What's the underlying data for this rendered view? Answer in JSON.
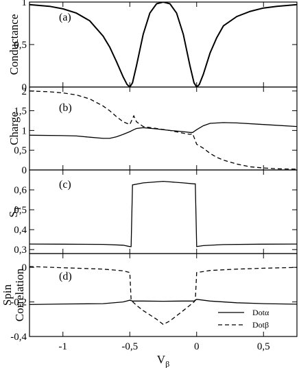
{
  "chart_data": [
    {
      "type": "line",
      "panel": "(a)",
      "ylabel": "Conductance",
      "xlim": [
        -1.25,
        0.75
      ],
      "ylim": [
        0,
        1
      ],
      "yticks": [
        "0",
        "0,5",
        "1"
      ],
      "grid": false,
      "series": [
        {
          "style": "solid",
          "x": [
            -1.25,
            -1.1,
            -1.0,
            -0.9,
            -0.8,
            -0.7,
            -0.65,
            -0.6,
            -0.55,
            -0.52,
            -0.5,
            -0.48,
            -0.45,
            -0.4,
            -0.35,
            -0.3,
            -0.25,
            -0.2,
            -0.15,
            -0.1,
            -0.05,
            -0.02,
            0.0,
            0.02,
            0.05,
            0.1,
            0.15,
            0.2,
            0.3,
            0.4,
            0.5,
            0.6,
            0.75
          ],
          "y": [
            0.97,
            0.95,
            0.92,
            0.87,
            0.78,
            0.6,
            0.47,
            0.3,
            0.12,
            0.03,
            0.0,
            0.05,
            0.25,
            0.62,
            0.87,
            0.98,
            1.0,
            0.98,
            0.87,
            0.62,
            0.25,
            0.05,
            0.0,
            0.03,
            0.15,
            0.4,
            0.58,
            0.72,
            0.83,
            0.89,
            0.93,
            0.95,
            0.97
          ]
        }
      ]
    },
    {
      "type": "line",
      "panel": "(b)",
      "ylabel": "Charge",
      "xlim": [
        -1.25,
        0.75
      ],
      "ylim": [
        0,
        2.1
      ],
      "yticks": [
        "0",
        "0,5",
        "1",
        "1,5",
        "2"
      ],
      "grid": false,
      "series": [
        {
          "name": "Dotα",
          "style": "solid",
          "x": [
            -1.25,
            -1.0,
            -0.9,
            -0.8,
            -0.7,
            -0.65,
            -0.6,
            -0.55,
            -0.5,
            -0.47,
            -0.45,
            -0.4,
            -0.3,
            -0.2,
            -0.1,
            -0.05,
            -0.03,
            0.0,
            0.05,
            0.1,
            0.2,
            0.3,
            0.5,
            0.75
          ],
          "y": [
            0.88,
            0.87,
            0.86,
            0.83,
            0.8,
            0.8,
            0.84,
            0.9,
            0.97,
            1.02,
            1.05,
            1.07,
            1.04,
            1.0,
            0.97,
            0.95,
            0.95,
            1.02,
            1.12,
            1.18,
            1.2,
            1.19,
            1.15,
            1.1
          ]
        },
        {
          "name": "Dotβ",
          "style": "dashed",
          "x": [
            -1.25,
            -1.1,
            -1.0,
            -0.9,
            -0.8,
            -0.7,
            -0.65,
            -0.6,
            -0.55,
            -0.5,
            -0.47,
            -0.45,
            -0.4,
            -0.3,
            -0.2,
            -0.1,
            -0.05,
            -0.03,
            0.0,
            0.05,
            0.1,
            0.15,
            0.2,
            0.3,
            0.4,
            0.5,
            0.6,
            0.75
          ],
          "y": [
            2.0,
            1.98,
            1.95,
            1.9,
            1.8,
            1.62,
            1.5,
            1.35,
            1.22,
            1.15,
            1.37,
            1.22,
            1.1,
            1.05,
            1.0,
            0.93,
            0.9,
            0.92,
            0.65,
            0.55,
            0.42,
            0.32,
            0.25,
            0.15,
            0.08,
            0.05,
            0.03,
            0.02
          ]
        }
      ]
    },
    {
      "type": "line",
      "panel": "(c)",
      "ylabel": "S",
      "ylabel_sub": "T",
      "xlim": [
        -1.25,
        0.75
      ],
      "ylim": [
        0.28,
        0.7
      ],
      "yticks": [
        "0,3",
        "0,4",
        "0,5",
        "0,6"
      ],
      "grid": false,
      "series": [
        {
          "style": "solid",
          "x": [
            -1.25,
            -1.0,
            -0.7,
            -0.55,
            -0.5,
            -0.49,
            -0.48,
            -0.4,
            -0.3,
            -0.25,
            -0.2,
            -0.1,
            -0.02,
            -0.01,
            0.0,
            0.05,
            0.2,
            0.5,
            0.75
          ],
          "y": [
            0.328,
            0.327,
            0.326,
            0.322,
            0.315,
            0.315,
            0.625,
            0.635,
            0.64,
            0.643,
            0.64,
            0.635,
            0.63,
            0.63,
            0.315,
            0.32,
            0.325,
            0.327,
            0.328
          ]
        }
      ]
    },
    {
      "type": "line",
      "panel": "(d)",
      "ylabel": "Spin Correlation",
      "xlim": [
        -1.25,
        0.75
      ],
      "ylim": [
        -0.4,
        0.08
      ],
      "yticks": [
        "-0,4",
        "-0,2",
        "0"
      ],
      "xticks": [
        "-1",
        "-0,5",
        "0",
        "0,5"
      ],
      "xlabel": "V",
      "xlabel_sub": "β",
      "grid": false,
      "legend": "bottom-right",
      "series": [
        {
          "name": "Dotα",
          "style": "solid",
          "x": [
            -1.25,
            -1.0,
            -0.7,
            -0.55,
            -0.5,
            -0.48,
            -0.4,
            -0.25,
            -0.1,
            -0.02,
            0.0,
            0.1,
            0.3,
            0.5,
            0.75
          ],
          "y": [
            -0.215,
            -0.212,
            -0.21,
            -0.2,
            -0.19,
            -0.195,
            -0.195,
            -0.196,
            -0.195,
            -0.195,
            -0.185,
            -0.195,
            -0.205,
            -0.21,
            -0.213
          ]
        },
        {
          "name": "Dotβ",
          "style": "dashed",
          "x": [
            -1.25,
            -1.0,
            -0.7,
            -0.55,
            -0.5,
            -0.49,
            -0.45,
            -0.4,
            -0.3,
            -0.25,
            -0.2,
            -0.1,
            -0.02,
            -0.01,
            0.0,
            0.1,
            0.3,
            0.5,
            0.75
          ],
          "y": [
            0.005,
            -0.002,
            -0.01,
            -0.02,
            -0.03,
            -0.19,
            -0.22,
            -0.25,
            -0.3,
            -0.33,
            -0.31,
            -0.25,
            -0.2,
            -0.19,
            -0.03,
            -0.018,
            -0.01,
            -0.005,
            0.0
          ]
        }
      ]
    }
  ]
}
